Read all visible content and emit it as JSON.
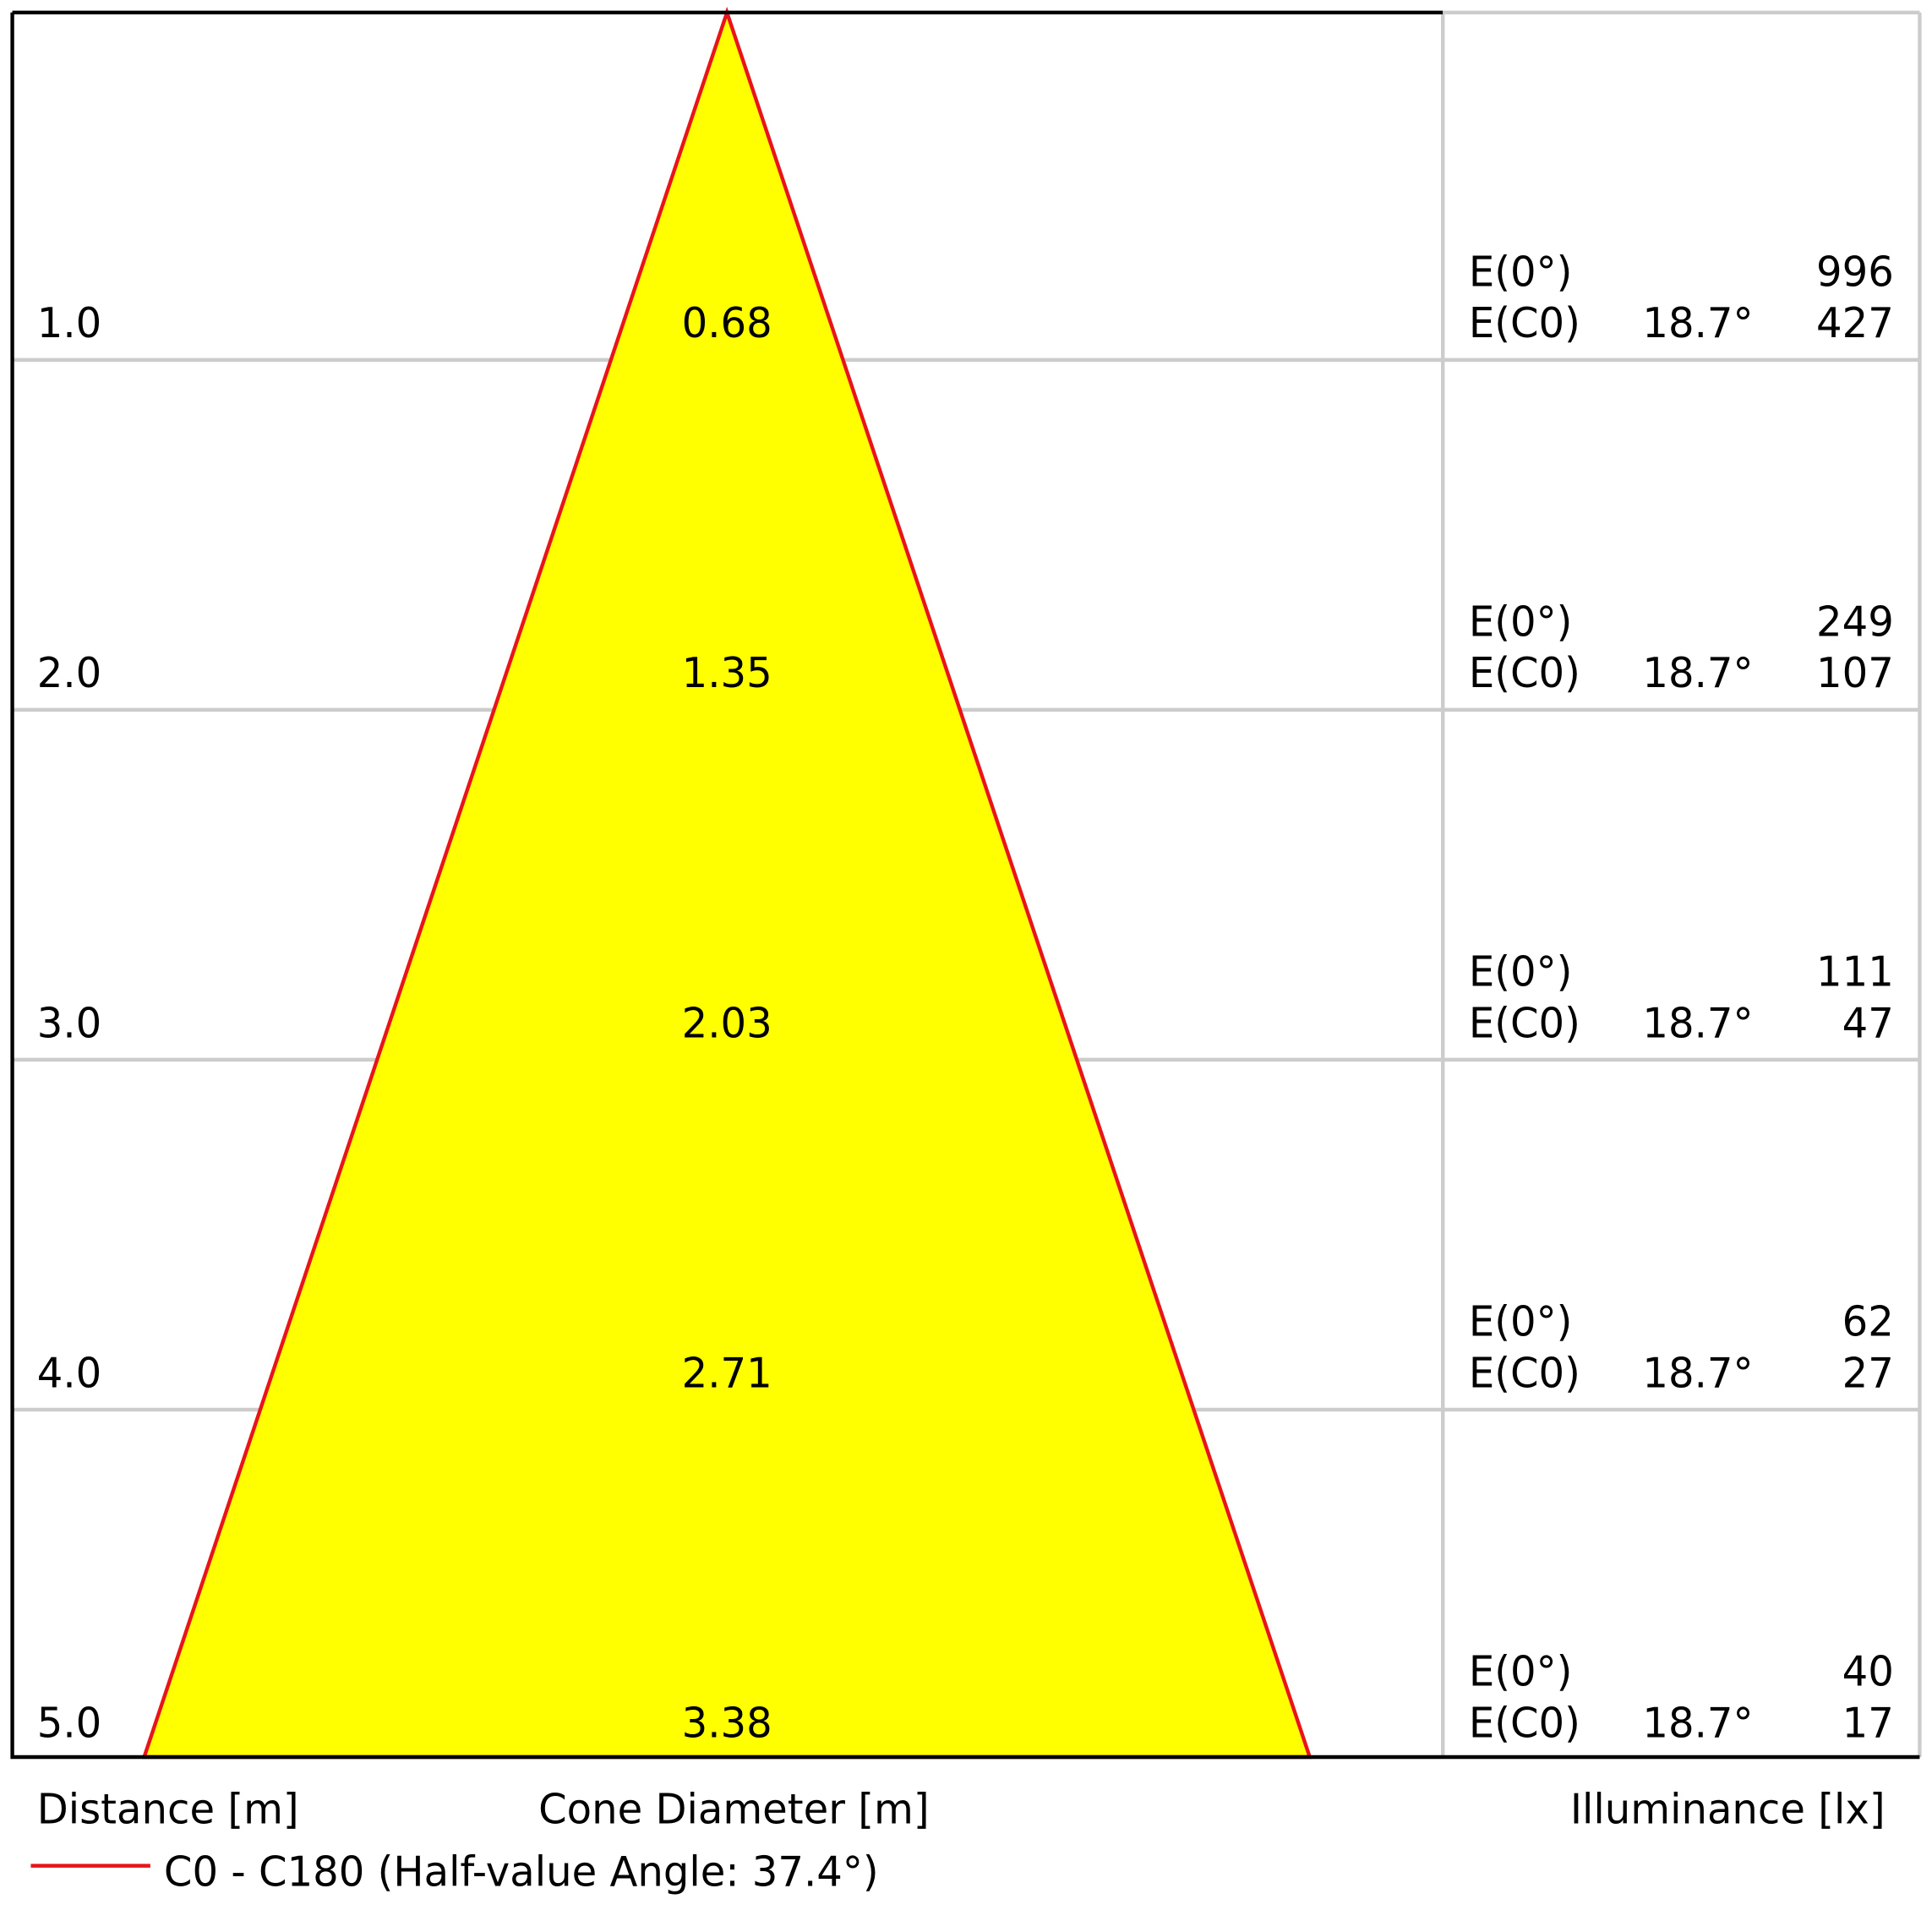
{
  "rows": [
    {
      "distance": "1.0",
      "diameter": "0.68",
      "e0_label": "E(0°)",
      "e0": "996",
      "ec0_label": "E(C0)",
      "angle": "18.7°",
      "ec0": "427"
    },
    {
      "distance": "2.0",
      "diameter": "1.35",
      "e0_label": "E(0°)",
      "e0": "249",
      "ec0_label": "E(C0)",
      "angle": "18.7°",
      "ec0": "107"
    },
    {
      "distance": "3.0",
      "diameter": "2.03",
      "e0_label": "E(0°)",
      "e0": "111",
      "ec0_label": "E(C0)",
      "angle": "18.7°",
      "ec0": "47"
    },
    {
      "distance": "4.0",
      "diameter": "2.71",
      "e0_label": "E(0°)",
      "e0": "62",
      "ec0_label": "E(C0)",
      "angle": "18.7°",
      "ec0": "27"
    },
    {
      "distance": "5.0",
      "diameter": "3.38",
      "e0_label": "E(0°)",
      "e0": "40",
      "ec0_label": "E(C0)",
      "angle": "18.7°",
      "ec0": "17"
    }
  ],
  "footer": {
    "distance": "Distance [m]",
    "diameter": "Cone Diameter [m]",
    "illuminance": "Illuminance [lx]"
  },
  "legend": {
    "label": "C0 - C180 (Half-value Angle: 37.4°)"
  }
}
